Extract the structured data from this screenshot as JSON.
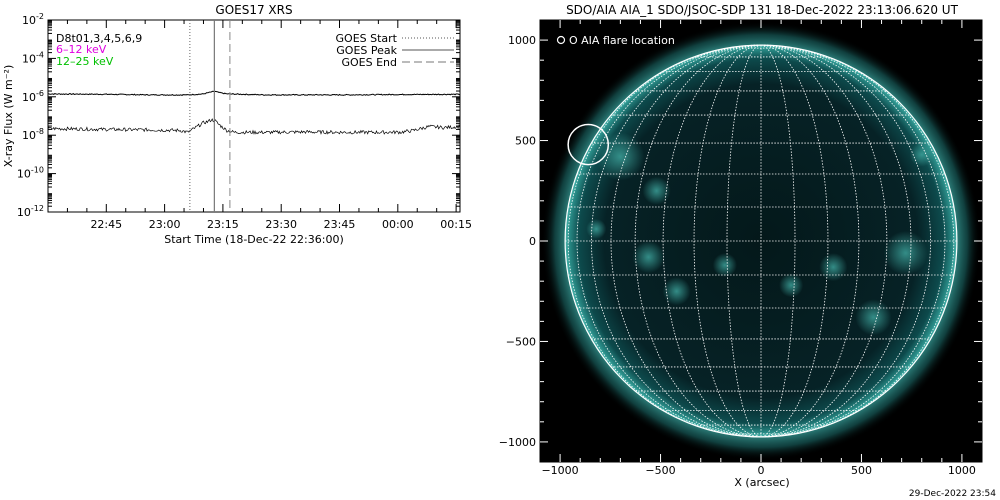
{
  "chart_data": [
    {
      "type": "line",
      "title": "GOES17 XRS",
      "xlabel": "Start Time (18-Dec-22 22:36:00)",
      "ylabel": "X-ray Flux (W m⁻²)",
      "yscale": "log",
      "ylim_exp": [
        -12,
        -2
      ],
      "ytick_exps": [
        -12,
        -10,
        -8,
        -6,
        -4,
        -2
      ],
      "xlim_min": [
        -6,
        100
      ],
      "xticks": [
        {
          "min": 9,
          "label": "22:45"
        },
        {
          "min": 24,
          "label": "23:00"
        },
        {
          "min": 39,
          "label": "23:15"
        },
        {
          "min": 54,
          "label": "23:30"
        },
        {
          "min": 69,
          "label": "23:45"
        },
        {
          "min": 84,
          "label": "00:00"
        },
        {
          "min": 99,
          "label": "00:15"
        }
      ],
      "text_labels": [
        "D8t01,3,4,5,6,9"
      ],
      "legend_left": [
        {
          "name": "6–12 keV",
          "color": "#e000e0"
        },
        {
          "name": "12–25 keV",
          "color": "#00c000"
        }
      ],
      "legend_right": [
        {
          "name": "GOES Start",
          "style": "dotted"
        },
        {
          "name": "GOES Peak",
          "style": "solid"
        },
        {
          "name": "GOES End",
          "style": "dashed"
        }
      ],
      "events_min": {
        "start": 30.5,
        "peak": 36.8,
        "end": 40.8
      },
      "series": [
        {
          "name": "long",
          "x": [
            -6,
            10,
            20,
            30,
            34,
            36,
            37,
            38,
            40,
            50,
            70,
            85,
            100
          ],
          "y": [
            -5.85,
            -5.87,
            -5.9,
            -5.9,
            -5.85,
            -5.75,
            -5.72,
            -5.78,
            -5.85,
            -5.9,
            -5.9,
            -5.88,
            -5.87
          ]
        },
        {
          "name": "short",
          "x": [
            -6,
            10,
            20,
            28,
            30,
            32,
            34,
            35,
            36,
            37,
            38,
            40,
            42,
            45,
            50,
            60,
            70,
            80,
            85,
            88,
            92,
            96,
            100
          ],
          "y": [
            -7.65,
            -7.7,
            -7.72,
            -7.75,
            -7.85,
            -7.6,
            -7.35,
            -7.3,
            -7.2,
            -7.25,
            -7.45,
            -7.75,
            -7.85,
            -7.85,
            -7.85,
            -7.83,
            -7.85,
            -7.85,
            -7.84,
            -7.75,
            -7.55,
            -7.6,
            -7.55
          ]
        }
      ]
    },
    {
      "type": "image",
      "title": "SDO/AIA AIA_1 SDO/JSOC-SDP 131 18-Dec-2022 23:13:06.620 UT",
      "xlabel": "X (arcsec)",
      "ylabel": "",
      "xlim": [
        -1100,
        1100
      ],
      "ylim": [
        -1100,
        1100
      ],
      "xticks": [
        -1000,
        -500,
        0,
        500,
        1000
      ],
      "yticks": [
        -1000,
        -500,
        0,
        500,
        1000
      ],
      "solar_radius_arcsec": 975,
      "grid_spacing_deg": 10,
      "legend": "O AIA flare location",
      "flare_location_arcsec": [
        -860,
        480
      ],
      "flare_circle_radius_arcsec": 100
    }
  ],
  "footer_date": "29-Dec-2022 23:54"
}
